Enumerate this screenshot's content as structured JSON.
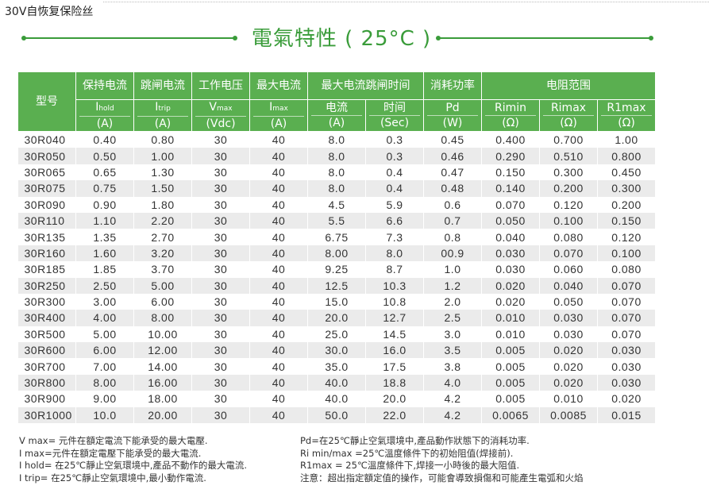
{
  "page_title": "30V自恢复保险丝",
  "heading": "電氣特性 ( 25°C )",
  "table": {
    "head": {
      "model": "型号",
      "hold": {
        "label": "保持电流",
        "symbol": "I",
        "sub": "hold",
        "unit": "(A)"
      },
      "trip": {
        "label": "跳闸电流",
        "symbol": "I",
        "sub": "trip",
        "unit": "(A)"
      },
      "vmax": {
        "label": "工作电压",
        "symbol": "V",
        "sub": "max",
        "unit": "(Vdc)"
      },
      "imax": {
        "label": "最大电流",
        "symbol": "I",
        "sub": "max",
        "unit": "(A)"
      },
      "trip_time": {
        "label": "最大电流跳闸时间",
        "current": "电流",
        "current_unit": "(A)",
        "time": "时间",
        "time_unit": "(Sec)"
      },
      "power": {
        "label": "消耗功率",
        "symbol": "Pd",
        "unit": "(W)"
      },
      "resistance": {
        "label": "电阻范围",
        "cols": [
          {
            "symbol": "Rimin",
            "unit": "(Ω)"
          },
          {
            "symbol": "Rimax",
            "unit": "(Ω)"
          },
          {
            "symbol": "R1max",
            "unit": "(Ω)"
          }
        ]
      }
    },
    "rows": [
      [
        "30R040",
        "0.40",
        "0.80",
        "30",
        "40",
        "8.0",
        "0.3",
        "0.45",
        "0.400",
        "0.700",
        "1.00"
      ],
      [
        "30R050",
        "0.50",
        "1.00",
        "30",
        "40",
        "8.0",
        "0.3",
        "0.46",
        "0.290",
        "0.510",
        "0.800"
      ],
      [
        "30R065",
        "0.65",
        "1.30",
        "30",
        "40",
        "8.0",
        "0.4",
        "0.47",
        "0.150",
        "0.300",
        "0.450"
      ],
      [
        "30R075",
        "0.75",
        "1.50",
        "30",
        "40",
        "8.0",
        "0.4",
        "0.48",
        "0.140",
        "0.200",
        "0.300"
      ],
      [
        "30R090",
        "0.90",
        "1.80",
        "30",
        "40",
        "4.5",
        "5.9",
        "0.6",
        "0.070",
        "0.120",
        "0.200"
      ],
      [
        "30R110",
        "1.10",
        "2.20",
        "30",
        "40",
        "5.5",
        "6.6",
        "0.7",
        "0.050",
        "0.100",
        "0.150"
      ],
      [
        "30R135",
        "1.35",
        "2.70",
        "30",
        "40",
        "6.75",
        "7.3",
        "0.8",
        "0.040",
        "0.080",
        "0.120"
      ],
      [
        "30R160",
        "1.60",
        "3.20",
        "30",
        "40",
        "8.00",
        "8.0",
        "00.9",
        "0.030",
        "0.070",
        "0.100"
      ],
      [
        "30R185",
        "1.85",
        "3.70",
        "30",
        "40",
        "9.25",
        "8.7",
        "1.0",
        "0.030",
        "0.060",
        "0.080"
      ],
      [
        "30R250",
        "2.50",
        "5.00",
        "30",
        "40",
        "12.5",
        "10.3",
        "1.2",
        "0.020",
        "0.040",
        "0.070"
      ],
      [
        "30R300",
        "3.00",
        "6.00",
        "30",
        "40",
        "15.0",
        "10.8",
        "2.0",
        "0.020",
        "0.050",
        "0.070"
      ],
      [
        "30R400",
        "4.00",
        "8.00",
        "30",
        "40",
        "20.0",
        "12.7",
        "2.5",
        "0.010",
        "0.030",
        "0.070"
      ],
      [
        "30R500",
        "5.00",
        "10.00",
        "30",
        "40",
        "25.0",
        "14.5",
        "3.0",
        "0.010",
        "0.030",
        "0.070"
      ],
      [
        "30R600",
        "6.00",
        "12.00",
        "30",
        "40",
        "30.0",
        "16.0",
        "3.5",
        "0.005",
        "0.020",
        "0.030"
      ],
      [
        "30R700",
        "7.00",
        "14.00",
        "30",
        "40",
        "35.0",
        "17.5",
        "3.8",
        "0.005",
        "0.020",
        "0.030"
      ],
      [
        "30R800",
        "8.00",
        "16.00",
        "30",
        "40",
        "40.0",
        "18.8",
        "4.0",
        "0.005",
        "0.020",
        "0.030"
      ],
      [
        "30R900",
        "9.00",
        "18.00",
        "30",
        "40",
        "40.0",
        "20.0",
        "4.2",
        "0.005",
        "0.010",
        "0.020"
      ],
      [
        "30R1000",
        "10.0",
        "20.00",
        "30",
        "40",
        "50.0",
        "22.0",
        "4.2",
        "0.0065",
        "0.0085",
        "0.015"
      ]
    ]
  },
  "notes": {
    "left": [
      "V max= 元件在額定電流下能承受的最大電壓.",
      "I max=元件在額定電壓下能承受的最大電流.",
      "I hold= 在25℃靜止空氣環境中,產品不動作的最大電流.",
      "I trip= 在25℃靜止空氣環境中,最小動作電流."
    ],
    "right": [
      "Pd=在25℃靜止空氣環境中,產品動作狀態下的消耗功率.",
      "Ri min/max  =25℃溫度條件下的初始阻值(焊接前).",
      "R1max  = 25℃溫度條件下,焊接一小時後的最大阻值.",
      "注意：超出指定額定值的操作，可能會導致損傷和可能產生電弧和火焰"
    ]
  }
}
